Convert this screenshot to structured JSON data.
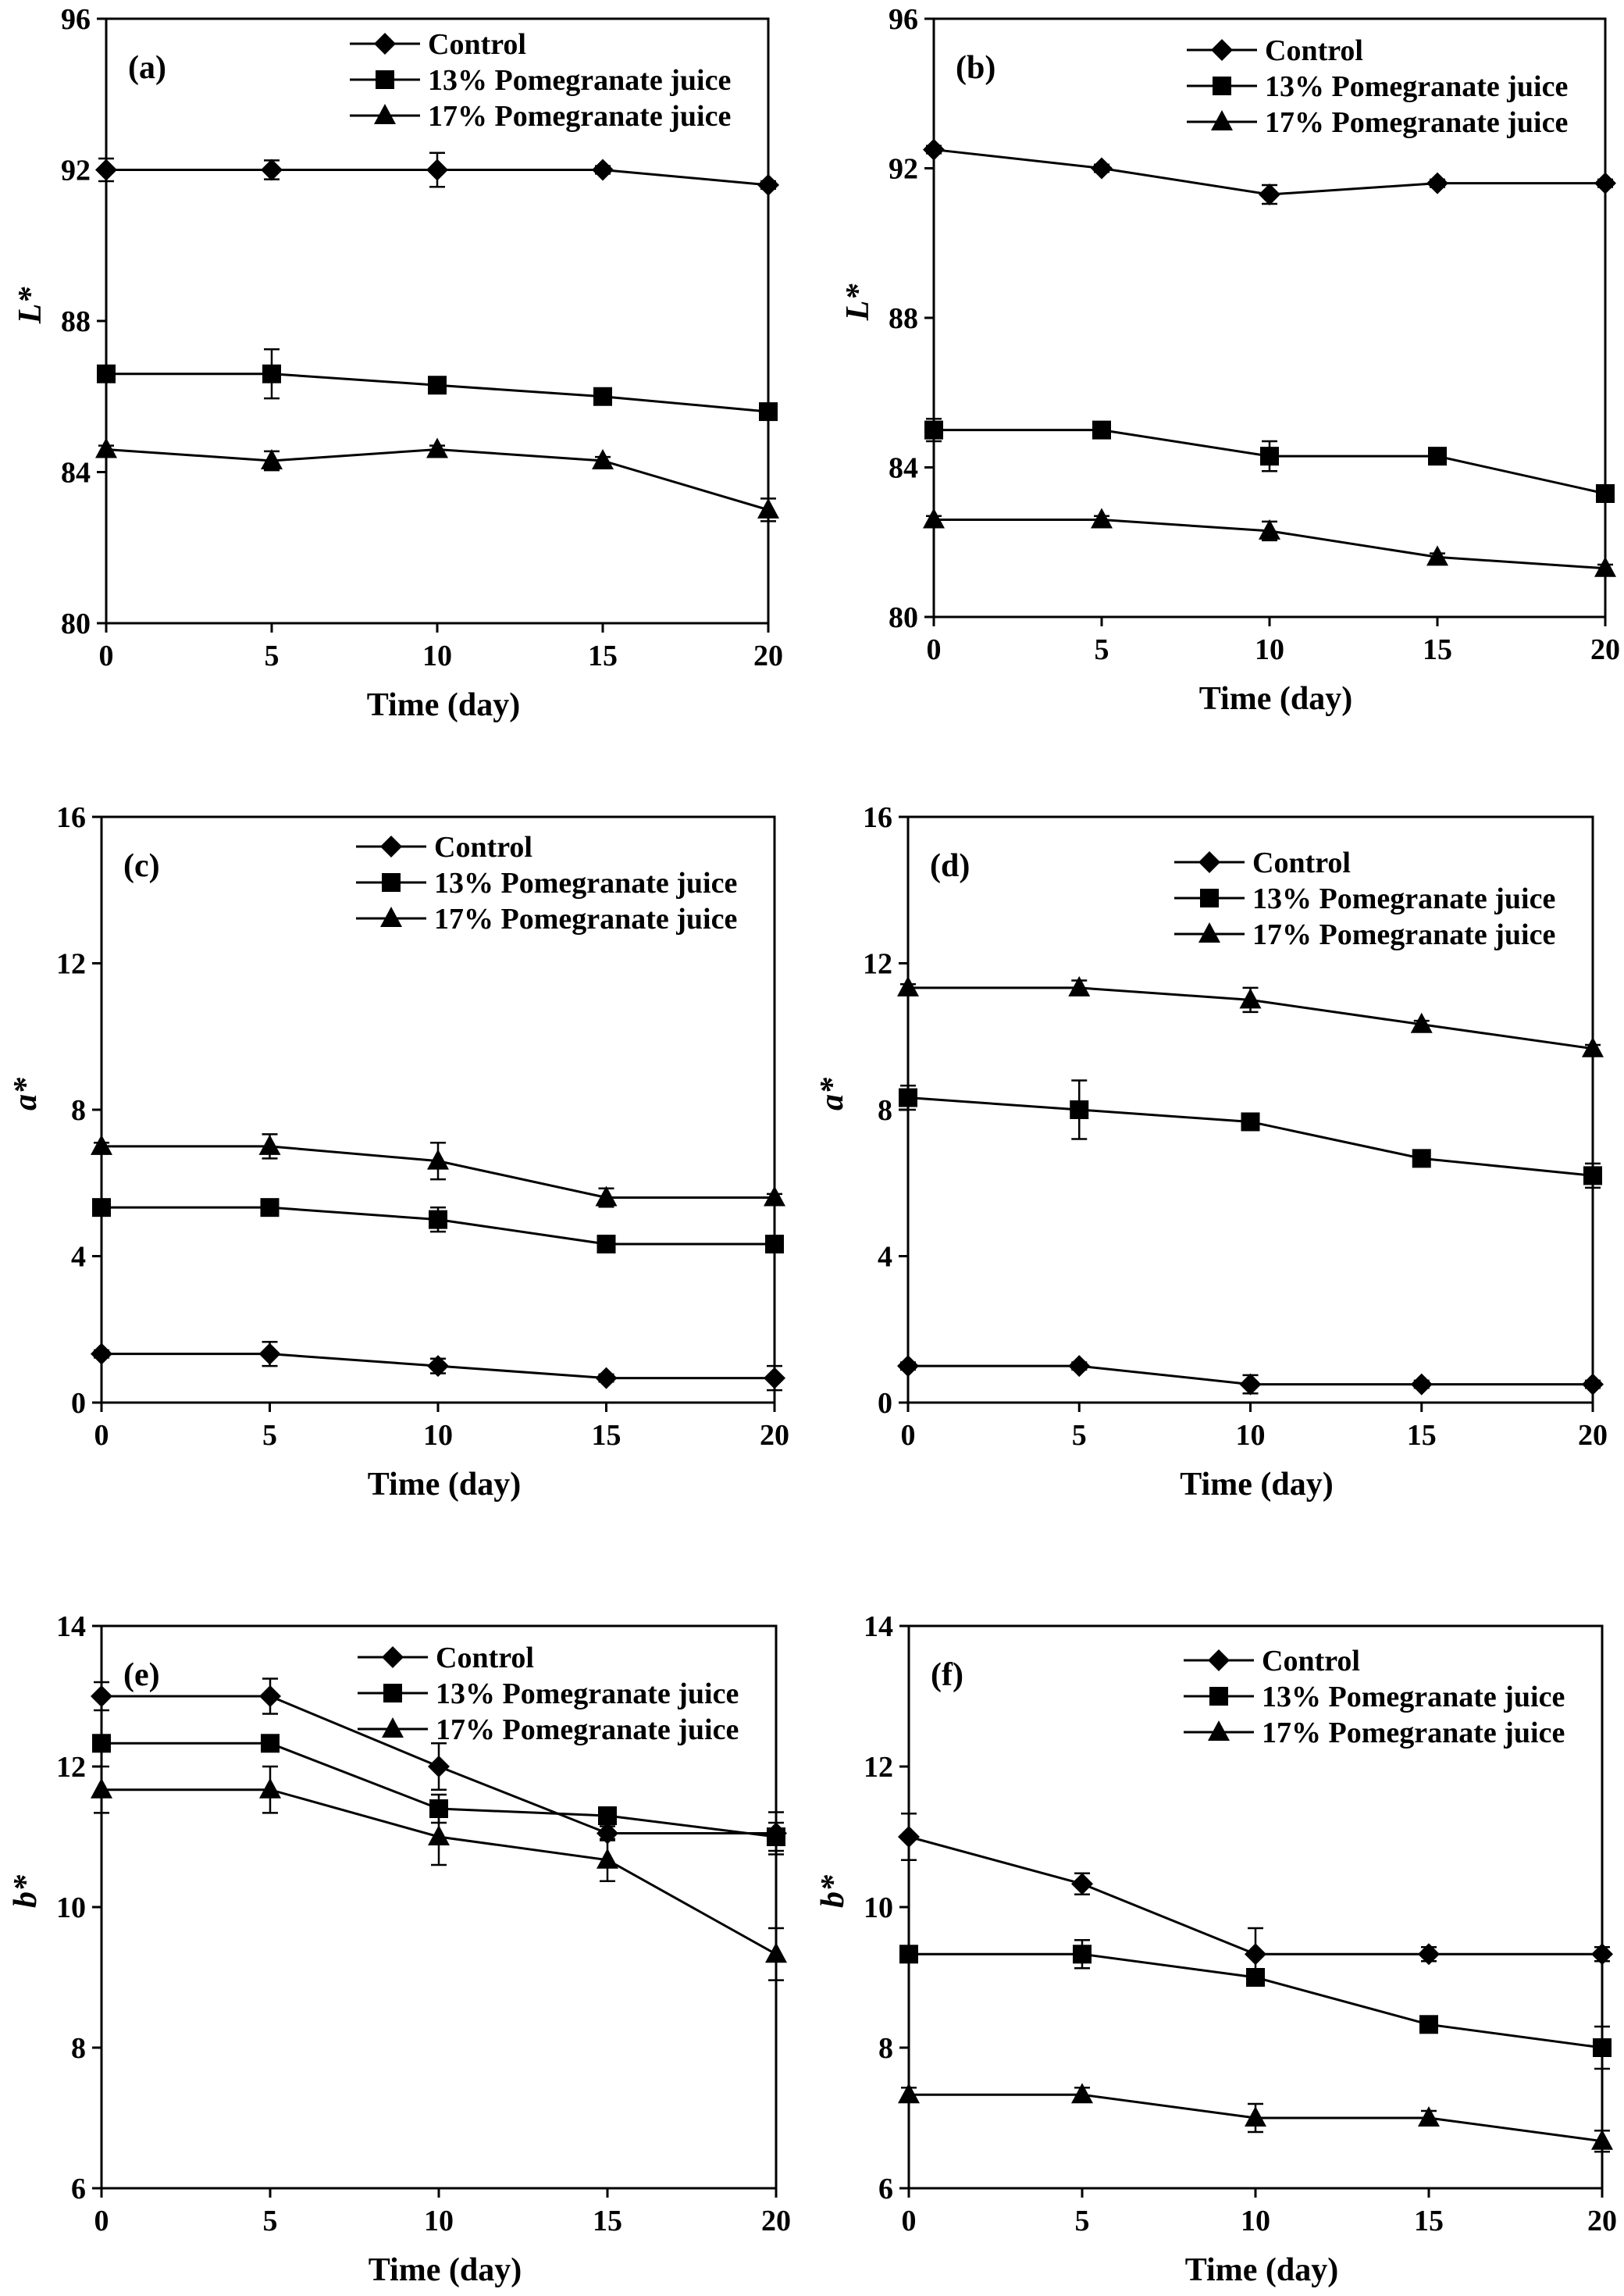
{
  "figure": {
    "panels": [
      {
        "label": "(a)",
        "ylabel": "L*",
        "xlabel": "Time (day)"
      },
      {
        "label": "(b)",
        "ylabel": "L*",
        "xlabel": "Time (day)"
      },
      {
        "label": "(c)",
        "ylabel": "a*",
        "xlabel": "Time (day)"
      },
      {
        "label": "(d)",
        "ylabel": "a*",
        "xlabel": "Time (day)"
      },
      {
        "label": "(e)",
        "ylabel": "b*",
        "xlabel": "Time (day)"
      },
      {
        "label": "(f)",
        "ylabel": "b*",
        "xlabel": "Time (day)"
      }
    ]
  },
  "chart_data": [
    {
      "type": "line",
      "panel": "(a)",
      "xlabel": "Time (day)",
      "ylabel": "L*",
      "x": [
        0,
        5,
        10,
        15,
        20
      ],
      "xlim": [
        0,
        20
      ],
      "ylim": [
        80,
        96
      ],
      "xticks": [
        0,
        5,
        10,
        15,
        20
      ],
      "yticks": [
        80,
        84,
        88,
        92,
        96
      ],
      "legend_position": "top-right",
      "grid": false,
      "series": [
        {
          "name": "Control",
          "marker": "diamond",
          "values": [
            92.0,
            92.0,
            92.0,
            92.0,
            91.6
          ],
          "errors": [
            0.3,
            0.25,
            0.45,
            0.1,
            0.1
          ]
        },
        {
          "name": "13% Pomegranate juice",
          "marker": "square",
          "values": [
            86.6,
            86.6,
            86.3,
            86.0,
            85.6
          ],
          "errors": [
            0.2,
            0.65,
            0.1,
            0.1,
            0.1
          ]
        },
        {
          "name": "17% Pomegranate juice",
          "marker": "triangle",
          "values": [
            84.6,
            84.3,
            84.6,
            84.3,
            83.0
          ],
          "errors": [
            0.1,
            0.25,
            0.1,
            0.1,
            0.3
          ]
        }
      ]
    },
    {
      "type": "line",
      "panel": "(b)",
      "xlabel": "Time (day)",
      "ylabel": "L*",
      "x": [
        0,
        5,
        10,
        15,
        20
      ],
      "xlim": [
        0,
        20
      ],
      "ylim": [
        80,
        96
      ],
      "xticks": [
        0,
        5,
        10,
        15,
        20
      ],
      "yticks": [
        80,
        84,
        88,
        92,
        96
      ],
      "legend_position": "top-right",
      "grid": false,
      "series": [
        {
          "name": "Control",
          "marker": "diamond",
          "values": [
            92.5,
            92.0,
            91.3,
            91.6,
            91.6
          ],
          "errors": [
            0.1,
            0.1,
            0.25,
            0.1,
            0.1
          ]
        },
        {
          "name": "13% Pomegranate juice",
          "marker": "square",
          "values": [
            85.0,
            85.0,
            84.3,
            84.3,
            83.3
          ],
          "errors": [
            0.3,
            0.1,
            0.4,
            0.1,
            0.1
          ]
        },
        {
          "name": "17% Pomegranate juice",
          "marker": "triangle",
          "values": [
            82.6,
            82.6,
            82.3,
            81.6,
            81.3
          ],
          "errors": [
            0.1,
            0.1,
            0.25,
            0.1,
            0.1
          ]
        }
      ]
    },
    {
      "type": "line",
      "panel": "(c)",
      "xlabel": "Time (day)",
      "ylabel": "a*",
      "x": [
        0,
        5,
        10,
        15,
        20
      ],
      "xlim": [
        0,
        20
      ],
      "ylim": [
        0,
        16
      ],
      "xticks": [
        0,
        5,
        10,
        15,
        20
      ],
      "yticks": [
        0,
        4,
        8,
        12,
        16
      ],
      "legend_position": "top-right",
      "grid": false,
      "series": [
        {
          "name": "Control",
          "marker": "diamond",
          "values": [
            1.33,
            1.33,
            1.0,
            0.67,
            0.67
          ],
          "errors": [
            0.1,
            0.33,
            0.2,
            0.1,
            0.33
          ]
        },
        {
          "name": "13% Pomegranate juice",
          "marker": "square",
          "values": [
            5.33,
            5.33,
            5.0,
            4.33,
            4.33
          ],
          "errors": [
            0.1,
            0.1,
            0.33,
            0.1,
            0.1
          ]
        },
        {
          "name": "17% Pomegranate juice",
          "marker": "triangle",
          "values": [
            7.0,
            7.0,
            6.6,
            5.6,
            5.6
          ],
          "errors": [
            0.1,
            0.33,
            0.5,
            0.25,
            0.1
          ]
        }
      ]
    },
    {
      "type": "line",
      "panel": "(d)",
      "xlabel": "Time (day)",
      "ylabel": "a*",
      "x": [
        0,
        5,
        10,
        15,
        20
      ],
      "xlim": [
        0,
        20
      ],
      "ylim": [
        0,
        16
      ],
      "xticks": [
        0,
        5,
        10,
        15,
        20
      ],
      "yticks": [
        0,
        4,
        8,
        12,
        16
      ],
      "legend_position": "top-right",
      "grid": false,
      "series": [
        {
          "name": "Control",
          "marker": "diamond",
          "values": [
            1.0,
            1.0,
            0.5,
            0.5,
            0.5
          ],
          "errors": [
            0.1,
            0.1,
            0.25,
            0.1,
            0.1
          ]
        },
        {
          "name": "13% Pomegranate juice",
          "marker": "square",
          "values": [
            8.33,
            8.0,
            7.67,
            6.67,
            6.2
          ],
          "errors": [
            0.33,
            0.8,
            0.2,
            0.1,
            0.33
          ]
        },
        {
          "name": "17% Pomegranate juice",
          "marker": "triangle",
          "values": [
            11.33,
            11.33,
            11.0,
            10.33,
            9.67
          ],
          "errors": [
            0.1,
            0.2,
            0.33,
            0.1,
            0.1
          ]
        }
      ]
    },
    {
      "type": "line",
      "panel": "(e)",
      "xlabel": "Time (day)",
      "ylabel": "b*",
      "x": [
        0,
        5,
        10,
        15,
        20
      ],
      "xlim": [
        0,
        20
      ],
      "ylim": [
        6,
        14
      ],
      "xticks": [
        0,
        5,
        10,
        15,
        20
      ],
      "yticks": [
        6,
        8,
        10,
        12,
        14
      ],
      "legend_position": "top-right",
      "grid": false,
      "series": [
        {
          "name": "Control",
          "marker": "diamond",
          "values": [
            13.0,
            13.0,
            12.0,
            11.05,
            11.05
          ],
          "errors": [
            0.2,
            0.25,
            0.33,
            0.1,
            0.3
          ]
        },
        {
          "name": "13% Pomegranate juice",
          "marker": "square",
          "values": [
            12.33,
            12.33,
            11.4,
            11.3,
            11.0
          ],
          "errors": [
            0.1,
            0.1,
            0.2,
            0.1,
            0.2
          ]
        },
        {
          "name": "17% Pomegranate juice",
          "marker": "triangle",
          "values": [
            11.67,
            11.67,
            11.0,
            10.67,
            9.33
          ],
          "errors": [
            0.33,
            0.33,
            0.4,
            0.3,
            0.37
          ]
        }
      ]
    },
    {
      "type": "line",
      "panel": "(f)",
      "xlabel": "Time (day)",
      "ylabel": "b*",
      "x": [
        0,
        5,
        10,
        15,
        20
      ],
      "xlim": [
        0,
        20
      ],
      "ylim": [
        6,
        14
      ],
      "xticks": [
        0,
        5,
        10,
        15,
        20
      ],
      "yticks": [
        6,
        8,
        10,
        12,
        14
      ],
      "legend_position": "top-right",
      "grid": false,
      "series": [
        {
          "name": "Control",
          "marker": "diamond",
          "values": [
            11.0,
            10.33,
            9.33,
            9.33,
            9.33
          ],
          "errors": [
            0.33,
            0.15,
            0.37,
            0.1,
            0.1
          ]
        },
        {
          "name": "13% Pomegranate juice",
          "marker": "square",
          "values": [
            9.33,
            9.33,
            9.0,
            8.33,
            8.0
          ],
          "errors": [
            0.1,
            0.2,
            0.1,
            0.1,
            0.3
          ]
        },
        {
          "name": "17% Pomegranate juice",
          "marker": "triangle",
          "values": [
            7.33,
            7.33,
            7.0,
            7.0,
            6.67
          ],
          "errors": [
            0.1,
            0.1,
            0.2,
            0.1,
            0.15
          ]
        }
      ]
    }
  ]
}
